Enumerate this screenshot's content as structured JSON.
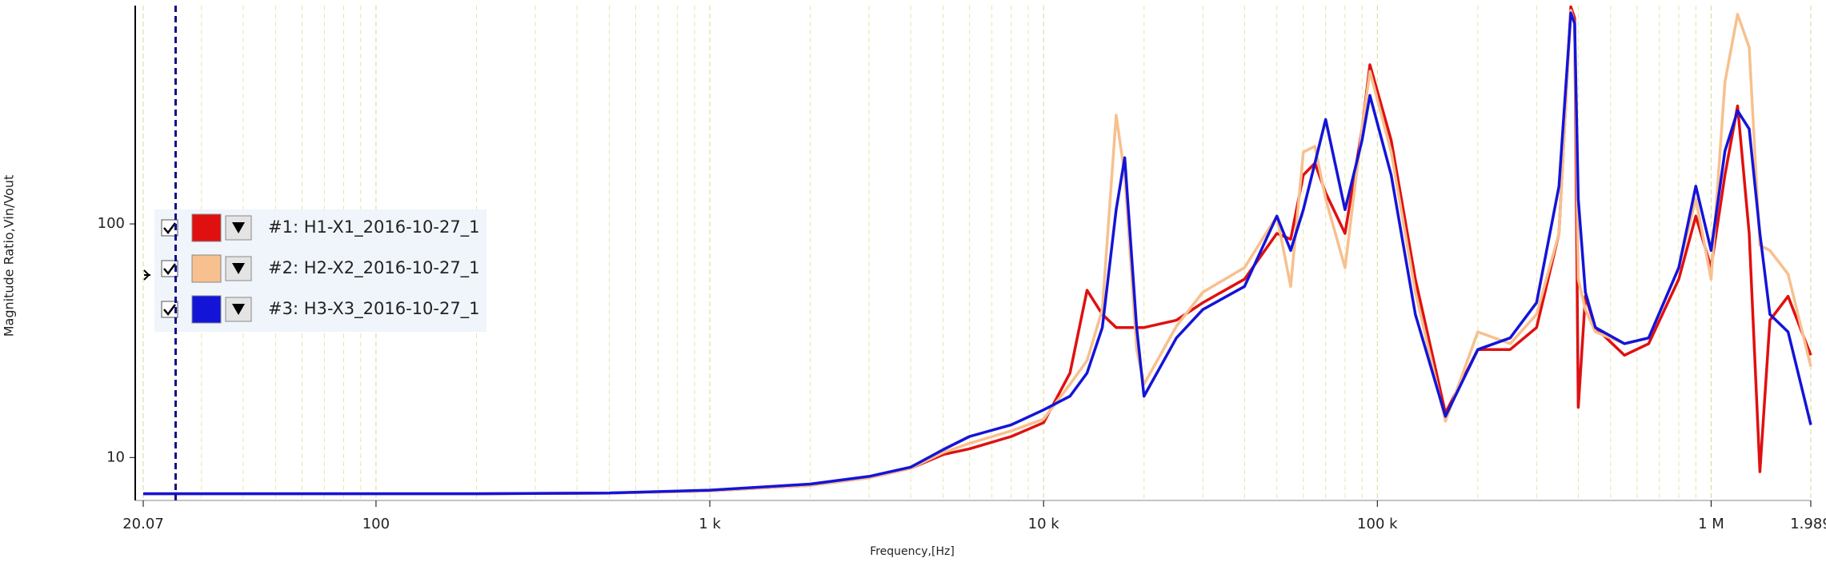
{
  "chart_data": {
    "type": "line",
    "xlabel": "Frequency,[Hz]",
    "ylabel": "Magnitude Ratio,Vin/Vout",
    "xscale": "log",
    "yscale": "log",
    "grid": true,
    "legend": "left",
    "xlim": [
      20.07,
      1989000
    ],
    "ylim": [
      6.55,
      860
    ],
    "xticks": [
      {
        "value": 20.07,
        "label": "20.07"
      },
      100,
      {
        "value": 1000,
        "label": "1 k"
      },
      {
        "value": 10000,
        "label": "10 k"
      },
      {
        "value": 100000,
        "label": "100 k"
      },
      {
        "value": 1000000,
        "label": "1 M"
      },
      {
        "value": 1989000,
        "label": "1.989"
      }
    ],
    "xminor": [
      30,
      40,
      50,
      60,
      70,
      80,
      90,
      200,
      300,
      400,
      500,
      600,
      700,
      800,
      900,
      2000,
      3000,
      4000,
      5000,
      6000,
      7000,
      8000,
      9000,
      20000,
      30000,
      40000,
      50000,
      60000,
      70000,
      80000,
      90000,
      200000,
      300000,
      400000,
      500000,
      600000,
      700000,
      800000,
      900000
    ],
    "yticks": [
      10,
      100
    ],
    "cursor_x": 25.1,
    "x": [
      20.07,
      50,
      100,
      200,
      500,
      1000,
      2000,
      3000,
      4000,
      5000,
      6000,
      8000,
      10000,
      12000,
      13500,
      15000,
      16500,
      17500,
      19000,
      20000,
      25000,
      30000,
      40000,
      50000,
      55000,
      60000,
      65000,
      70000,
      80000,
      90000,
      95000,
      110000,
      130000,
      160000,
      200000,
      250000,
      300000,
      350000,
      380000,
      390000,
      400000,
      420000,
      450000,
      550000,
      650000,
      800000,
      900000,
      1000000,
      1100000,
      1200000,
      1300000,
      1400000,
      1500000,
      1700000,
      1989000
    ],
    "series": [
      {
        "name": "#1: H1-X1_2016-10-27_1",
        "color": "#e01010",
        "values": [
          7.0,
          7.0,
          7.0,
          7.0,
          7.05,
          7.2,
          7.6,
          8.2,
          9.0,
          10.3,
          10.9,
          12.3,
          14.1,
          23,
          52,
          41,
          36,
          36,
          36,
          36,
          38.7,
          46,
          58,
          91,
          86,
          162,
          182,
          136,
          91,
          255,
          480,
          228,
          58,
          15.5,
          29,
          29,
          36,
          91,
          850,
          760,
          16.4,
          49,
          36,
          27.4,
          30.7,
          58,
          108,
          65,
          162,
          320,
          91,
          8.7,
          38.7,
          49,
          27.4
        ]
      },
      {
        "name": "#2: H2-X2_2016-10-27_1",
        "color": "#f7c08e",
        "values": [
          7.0,
          7.0,
          7.0,
          7.0,
          7.05,
          7.2,
          7.6,
          8.2,
          9.0,
          10.5,
          11.5,
          13,
          14.6,
          20.6,
          26,
          43,
          292,
          162,
          29,
          20.6,
          36.5,
          51,
          65,
          108,
          54,
          203,
          215,
          128,
          65,
          255,
          450,
          203,
          51,
          14.3,
          34.5,
          30.7,
          41,
          91,
          820,
          720,
          58,
          43,
          34.5,
          30.7,
          32.5,
          65,
          128,
          58,
          405,
          790,
          570,
          81,
          77,
          61,
          24.5
        ]
      },
      {
        "name": "#3: H3-X3_2016-10-27_1",
        "color": "#1414d8",
        "values": [
          7.0,
          7.0,
          7.0,
          7.0,
          7.05,
          7.25,
          7.7,
          8.3,
          9.1,
          10.8,
          12.3,
          13.8,
          16,
          18.3,
          23,
          36,
          115,
          192,
          36,
          18.3,
          32.5,
          43,
          54,
          108,
          77,
          115,
          182,
          280,
          115,
          228,
          355,
          162,
          41,
          15,
          29,
          32.5,
          46,
          145,
          800,
          720,
          128,
          51,
          36,
          30.7,
          32.5,
          65,
          145,
          77,
          205,
          305,
          255,
          91,
          41,
          34.5,
          13.8
        ]
      }
    ]
  }
}
